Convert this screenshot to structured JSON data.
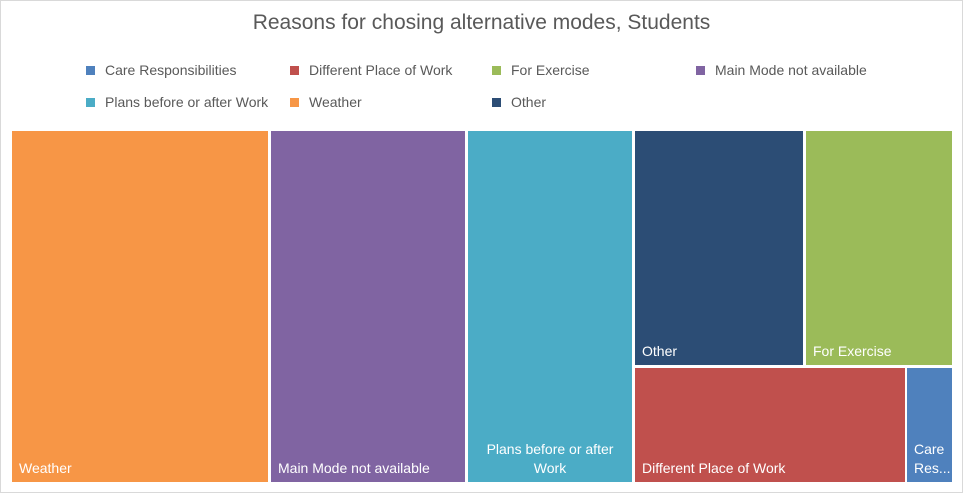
{
  "chart_data": {
    "type": "treemap",
    "title": "Reasons for chosing alternative modes, Students",
    "legend_position": "top",
    "items": [
      {
        "name": "Weather",
        "label": [
          "Weather"
        ],
        "value": 90,
        "color": "#F79646"
      },
      {
        "name": "Main Mode not available",
        "label": [
          "Main Mode not available"
        ],
        "value": 69,
        "color": "#8064A2"
      },
      {
        "name": "Plans before or after Work",
        "label": [
          "Plans before or after",
          "Work"
        ],
        "value": 58,
        "color": "#4BACC6"
      },
      {
        "name": "Other",
        "label": [
          "Other"
        ],
        "value": 40,
        "color": "#2C4D75"
      },
      {
        "name": "For Exercise",
        "label": [
          "For Exercise"
        ],
        "value": 34,
        "color": "#9BBB59"
      },
      {
        "name": "Different Place of Work",
        "label": [
          "Different Place of Work"
        ],
        "value": 31,
        "color": "#C0504D"
      },
      {
        "name": "Care Responsibilities",
        "label": [
          "Care",
          "Res..."
        ],
        "value": 5,
        "color": "#4F81BD"
      }
    ],
    "legend": [
      {
        "name": "Care Responsibilities",
        "color": "#4F81BD"
      },
      {
        "name": "Different Place of Work",
        "color": "#C0504D"
      },
      {
        "name": "For Exercise",
        "color": "#9BBB59"
      },
      {
        "name": "Main Mode not available",
        "color": "#8064A2"
      },
      {
        "name": "Plans before or after Work",
        "color": "#4BACC6"
      },
      {
        "name": "Weather",
        "color": "#F79646"
      },
      {
        "name": "Other",
        "color": "#2C4D75"
      }
    ]
  }
}
